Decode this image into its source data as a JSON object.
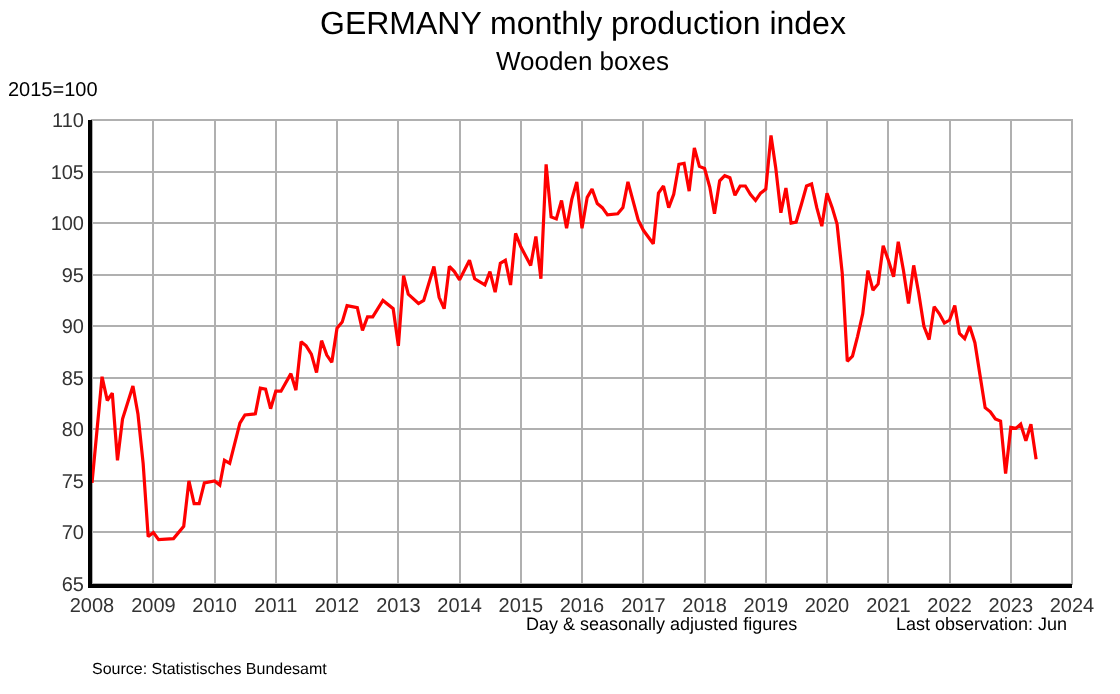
{
  "chart_data": {
    "type": "line",
    "title": "GERMANY monthly production index",
    "subtitle": "Wooden boxes",
    "ylabel": "2015=100",
    "annotations": [
      "Day & seasonally adjusted figures",
      "Last observation: Jun",
      "Source: Statistisches Bundesamt"
    ],
    "x": [
      "2008-01",
      "2008-03",
      "2008-04",
      "2008-05",
      "2008-06",
      "2008-07",
      "2008-09",
      "2008-10",
      "2008-11",
      "2008-12",
      "2009-01",
      "2009-02",
      "2009-05",
      "2009-07",
      "2009-08",
      "2009-09",
      "2009-10",
      "2009-11",
      "2010-01",
      "2010-02",
      "2010-03",
      "2010-04",
      "2010-06",
      "2010-07",
      "2010-09",
      "2010-10",
      "2010-11",
      "2010-12",
      "2011-01",
      "2011-02",
      "2011-04",
      "2011-05",
      "2011-06",
      "2011-07",
      "2011-08",
      "2011-09",
      "2011-10",
      "2011-11",
      "2011-12",
      "2012-01",
      "2012-02",
      "2012-03",
      "2012-05",
      "2012-06",
      "2012-07",
      "2012-08",
      "2012-10",
      "2012-12",
      "2013-01",
      "2013-02",
      "2013-03",
      "2013-05",
      "2013-06",
      "2013-08",
      "2013-09",
      "2013-10",
      "2013-11",
      "2013-12",
      "2014-01",
      "2014-03",
      "2014-04",
      "2014-06",
      "2014-07",
      "2014-08",
      "2014-09",
      "2014-10",
      "2014-11",
      "2014-12",
      "2015-01",
      "2015-03",
      "2015-04",
      "2015-05",
      "2015-06",
      "2015-07",
      "2015-08",
      "2015-09",
      "2015-10",
      "2015-11",
      "2015-12",
      "2016-01",
      "2016-02",
      "2016-03",
      "2016-04",
      "2016-05",
      "2016-06",
      "2016-08",
      "2016-09",
      "2016-10",
      "2016-12",
      "2017-01",
      "2017-03",
      "2017-04",
      "2017-05",
      "2017-06",
      "2017-07",
      "2017-08",
      "2017-09",
      "2017-10",
      "2017-11",
      "2017-12",
      "2018-01",
      "2018-02",
      "2018-03",
      "2018-04",
      "2018-05",
      "2018-06",
      "2018-07",
      "2018-08",
      "2018-09",
      "2018-10",
      "2018-11",
      "2018-12",
      "2019-01",
      "2019-02",
      "2019-03",
      "2019-04",
      "2019-05",
      "2019-06",
      "2019-07",
      "2019-08",
      "2019-09",
      "2019-10",
      "2019-11",
      "2019-12",
      "2020-01",
      "2020-02",
      "2020-03",
      "2020-04",
      "2020-05",
      "2020-06",
      "2020-07",
      "2020-08",
      "2020-09",
      "2020-10",
      "2020-11",
      "2020-12",
      "2021-01",
      "2021-02",
      "2021-03",
      "2021-04",
      "2021-05",
      "2021-06",
      "2021-07",
      "2021-08",
      "2021-09",
      "2021-10",
      "2021-11",
      "2021-12",
      "2022-01",
      "2022-02",
      "2022-03",
      "2022-04",
      "2022-05",
      "2022-06",
      "2022-07",
      "2022-08",
      "2022-09",
      "2022-10",
      "2022-11",
      "2022-12",
      "2023-01",
      "2023-02",
      "2023-03",
      "2023-04",
      "2023-05",
      "2023-06"
    ],
    "series": [
      {
        "color": "#ff0000",
        "values": [
          74.8,
          85.1,
          82.8,
          83.5,
          77.0,
          81.0,
          84.2,
          81.5,
          76.7,
          69.6,
          70.0,
          69.3,
          69.4,
          70.6,
          75.0,
          72.8,
          72.8,
          74.8,
          75.0,
          74.6,
          77.0,
          76.7,
          80.6,
          81.4,
          81.5,
          84.0,
          83.9,
          82.0,
          83.7,
          83.7,
          85.4,
          83.8,
          88.5,
          88.1,
          87.3,
          85.5,
          88.6,
          87.2,
          86.5,
          89.8,
          90.4,
          92.0,
          91.8,
          89.6,
          90.9,
          90.9,
          92.5,
          91.7,
          88.1,
          94.9,
          93.1,
          92.2,
          92.5,
          95.8,
          92.8,
          91.7,
          95.8,
          95.3,
          94.5,
          96.4,
          94.6,
          94.0,
          95.3,
          93.3,
          96.1,
          96.4,
          94.0,
          99.0,
          97.7,
          95.9,
          98.7,
          94.6,
          105.7,
          100.6,
          100.4,
          102.2,
          99.5,
          102.3,
          104.0,
          99.5,
          102.5,
          103.3,
          101.9,
          101.5,
          100.8,
          100.9,
          101.5,
          104.0,
          100.3,
          99.3,
          98.0,
          102.9,
          103.6,
          101.5,
          102.8,
          105.7,
          105.8,
          103.1,
          107.3,
          105.5,
          105.3,
          103.5,
          100.9,
          104.1,
          104.6,
          104.4,
          102.7,
          103.6,
          103.6,
          102.8,
          102.2,
          102.9,
          103.3,
          108.5,
          105.4,
          101.0,
          103.4,
          100.0,
          100.1,
          101.8,
          103.6,
          103.8,
          101.5,
          99.7,
          102.9,
          101.5,
          99.9,
          95.1,
          86.6,
          87.1,
          89.0,
          91.2,
          95.4,
          93.5,
          94.1,
          97.8,
          96.4,
          94.8,
          98.2,
          95.4,
          92.2,
          95.9,
          93.2,
          90.0,
          88.7,
          91.9,
          91.2,
          90.3,
          90.6,
          92.0,
          89.3,
          88.8,
          90.0,
          88.4,
          85.3,
          82.1,
          81.7,
          81.0,
          80.8,
          75.7,
          80.2,
          80.1,
          80.5,
          78.9,
          80.5,
          77.1
        ]
      }
    ],
    "xlim": [
      "2008-01-01",
      "2024-01-01"
    ],
    "xticks": [
      {
        "value": "2008-01-01",
        "label": "2008"
      },
      {
        "value": "2009-01-01",
        "label": "2009"
      },
      {
        "value": "2010-01-01",
        "label": "2010"
      },
      {
        "value": "2011-01-01",
        "label": "2011"
      },
      {
        "value": "2012-01-01",
        "label": "2012"
      },
      {
        "value": "2013-01-01",
        "label": "2013"
      },
      {
        "value": "2014-01-01",
        "label": "2014"
      },
      {
        "value": "2015-01-01",
        "label": "2015"
      },
      {
        "value": "2016-01-01",
        "label": "2016"
      },
      {
        "value": "2017-01-01",
        "label": "2017"
      },
      {
        "value": "2018-01-01",
        "label": "2018"
      },
      {
        "value": "2019-01-01",
        "label": "2019"
      },
      {
        "value": "2020-01-01",
        "label": "2020"
      },
      {
        "value": "2021-01-01",
        "label": "2021"
      },
      {
        "value": "2022-01-01",
        "label": "2022"
      },
      {
        "value": "2023-01-01",
        "label": "2023"
      },
      {
        "value": "2024-01-01",
        "label": "2024"
      }
    ],
    "ylim": [
      65,
      110
    ],
    "yticks": [
      65,
      70,
      75,
      80,
      85,
      90,
      95,
      100,
      105,
      110
    ],
    "grid": true,
    "marker": "none",
    "line_style": "solid"
  }
}
